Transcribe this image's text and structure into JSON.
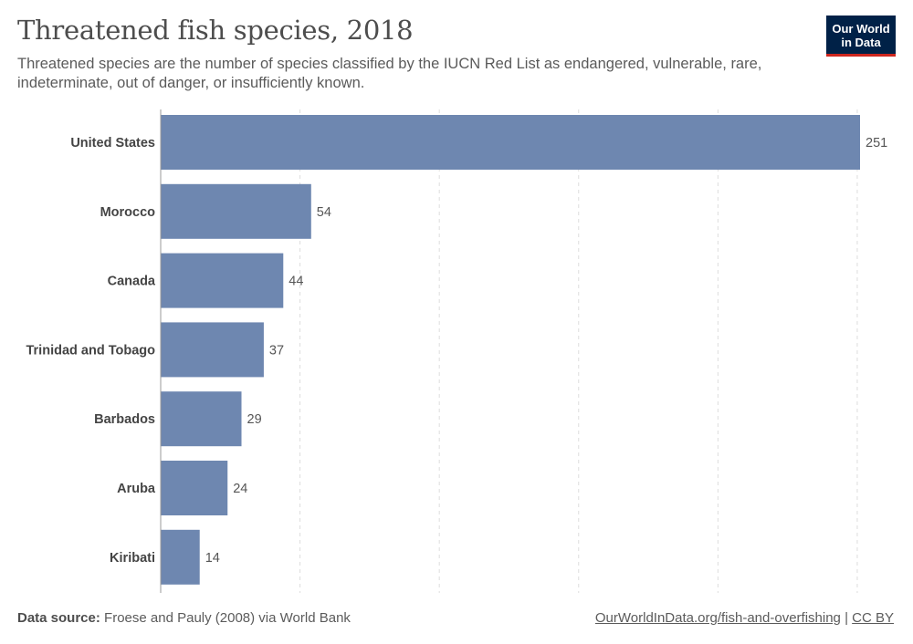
{
  "header": {
    "title": "Threatened fish species, 2018",
    "subtitle": "Threatened species are the number of species classified by the IUCN Red List as endangered, vulnerable, rare, indeterminate, out of danger, or insufficiently known."
  },
  "logo": {
    "line1": "Our World",
    "line2": "in Data"
  },
  "footer": {
    "source_label": "Data source:",
    "source_text": "Froese and Pauly (2008) via World Bank",
    "link_text": "OurWorldInData.org/fish-and-overfishing",
    "separator": "|",
    "license": "CC BY"
  },
  "colors": {
    "bar": "#6e87b0",
    "grid": "#dddddd",
    "axis": "#999999",
    "label": "#444444",
    "value": "#555555"
  },
  "chart_data": {
    "type": "bar",
    "orientation": "horizontal",
    "categories": [
      "United States",
      "Morocco",
      "Canada",
      "Trinidad and Tobago",
      "Barbados",
      "Aruba",
      "Kiribati"
    ],
    "values": [
      251,
      54,
      44,
      37,
      29,
      24,
      14
    ],
    "xlim": [
      0,
      251
    ],
    "grid": true,
    "gridlines": [
      50,
      100,
      150,
      200,
      250
    ]
  }
}
